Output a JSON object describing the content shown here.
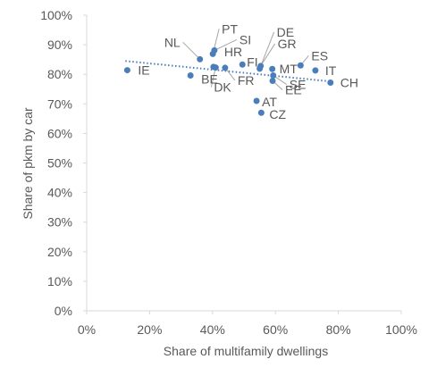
{
  "chart_data": {
    "type": "scatter",
    "title": "",
    "xlabel": "Share of multifamily dwellings",
    "ylabel": "Share of pkm by car",
    "xlim": [
      0,
      100
    ],
    "ylim": [
      0,
      100
    ],
    "x_ticks": [
      "0%",
      "20%",
      "40%",
      "60%",
      "80%",
      "100%"
    ],
    "y_ticks": [
      "0%",
      "10%",
      "20%",
      "30%",
      "40%",
      "50%",
      "60%",
      "70%",
      "80%",
      "90%",
      "100%"
    ],
    "grid": false,
    "point_color": "#4a7ebb",
    "trendline": {
      "style": "dotted",
      "color": "#4a7ebb",
      "x": [
        12.3,
        77.4
      ],
      "y": [
        84.5,
        77.6
      ]
    },
    "points": [
      {
        "label": "IE",
        "x": 12.9,
        "y": 81.4
      },
      {
        "label": "BE",
        "x": 33.0,
        "y": 79.6
      },
      {
        "label": "NL",
        "x": 36.0,
        "y": 85.1
      },
      {
        "label": "PT",
        "x": 40.1,
        "y": 86.9
      },
      {
        "label": "SI",
        "x": 40.6,
        "y": 88.1
      },
      {
        "label": "HR",
        "x": 40.3,
        "y": 82.5
      },
      {
        "label": "DK",
        "x": 41.0,
        "y": 82.3
      },
      {
        "label": "FR",
        "x": 44.0,
        "y": 82.2
      },
      {
        "label": "FI",
        "x": 49.5,
        "y": 83.3
      },
      {
        "label": "AT",
        "x": 54.0,
        "y": 71.0
      },
      {
        "label": "CZ",
        "x": 55.5,
        "y": 67.0
      },
      {
        "label": "DE",
        "x": 55.0,
        "y": 81.9
      },
      {
        "label": "GR",
        "x": 55.3,
        "y": 82.8
      },
      {
        "label": "MT",
        "x": 59.0,
        "y": 81.8
      },
      {
        "label": "EE",
        "x": 59.1,
        "y": 77.8
      },
      {
        "label": "SE",
        "x": 59.3,
        "y": 79.6
      },
      {
        "label": "ES",
        "x": 68.0,
        "y": 83.0
      },
      {
        "label": "IT",
        "x": 72.7,
        "y": 81.3
      },
      {
        "label": "CH",
        "x": 77.5,
        "y": 77.2
      }
    ]
  }
}
